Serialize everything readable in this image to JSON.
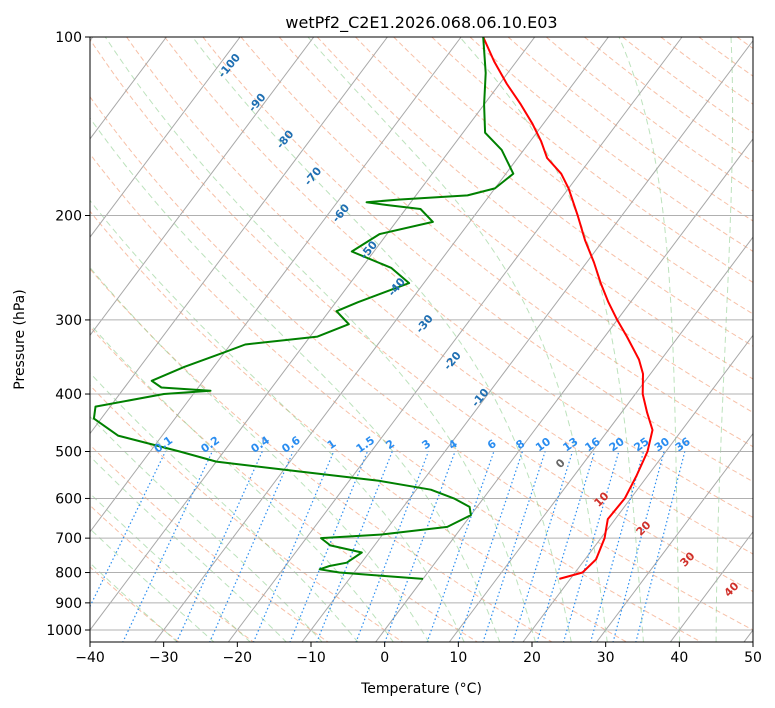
{
  "chart_data": {
    "type": "skew-t log-p",
    "title": "wetPf2_C2E1.2026.068.06.10.E03",
    "xlabel": "Temperature (°C)",
    "ylabel": "Pressure (hPa)",
    "xlim": [
      -40,
      50
    ],
    "ylim": [
      1050,
      100
    ],
    "y_scale": "log",
    "x_ticks": [
      -40,
      -30,
      -20,
      -10,
      0,
      10,
      20,
      30,
      40,
      50
    ],
    "y_ticks": [
      100,
      200,
      300,
      400,
      500,
      600,
      700,
      800,
      900,
      1000
    ],
    "grid": true,
    "colors": {
      "temperature": "#ff0000",
      "dewpoint": "#008000",
      "isotherm": "#a8a8a8",
      "dry_adiabat": "#f4a582",
      "moist_adiabat": "#8fce8f",
      "mixing_ratio": "#2a8df0",
      "adiabat_label": "#1f6fb2",
      "moist_label": "#d0302a"
    },
    "series": [
      {
        "points": [
          {
            "p": 820,
            "t": 18.5
          },
          {
            "p": 800,
            "t": 21
          },
          {
            "p": 760,
            "t": 21.5
          },
          {
            "p": 700,
            "t": 20.5
          },
          {
            "p": 650,
            "t": 19
          },
          {
            "p": 600,
            "t": 19.2
          },
          {
            "p": 550,
            "t": 18.5
          },
          {
            "p": 500,
            "t": 17.5
          },
          {
            "p": 460,
            "t": 16
          },
          {
            "p": 430,
            "t": 13.5
          },
          {
            "p": 400,
            "t": 11
          },
          {
            "p": 370,
            "t": 9
          },
          {
            "p": 350,
            "t": 7
          },
          {
            "p": 320,
            "t": 3
          },
          {
            "p": 300,
            "t": 0
          },
          {
            "p": 280,
            "t": -3
          },
          {
            "p": 260,
            "t": -6
          },
          {
            "p": 240,
            "t": -9
          },
          {
            "p": 220,
            "t": -12.5
          },
          {
            "p": 200,
            "t": -16
          },
          {
            "p": 180,
            "t": -20
          },
          {
            "p": 170,
            "t": -22.5
          },
          {
            "p": 160,
            "t": -26
          },
          {
            "p": 150,
            "t": -28.5
          },
          {
            "p": 140,
            "t": -31.5
          },
          {
            "p": 130,
            "t": -35
          },
          {
            "p": 120,
            "t": -39
          },
          {
            "p": 110,
            "t": -43
          },
          {
            "p": 100,
            "t": -47
          }
        ]
      },
      {
        "points": [
          {
            "p": 820,
            "t": 0
          },
          {
            "p": 810,
            "t": -6
          },
          {
            "p": 800,
            "t": -12
          },
          {
            "p": 790,
            "t": -15
          },
          {
            "p": 780,
            "t": -14
          },
          {
            "p": 770,
            "t": -12
          },
          {
            "p": 740,
            "t": -11
          },
          {
            "p": 720,
            "t": -16
          },
          {
            "p": 700,
            "t": -18
          },
          {
            "p": 690,
            "t": -10
          },
          {
            "p": 670,
            "t": -2
          },
          {
            "p": 640,
            "t": 0
          },
          {
            "p": 620,
            "t": -1
          },
          {
            "p": 600,
            "t": -4
          },
          {
            "p": 580,
            "t": -8
          },
          {
            "p": 560,
            "t": -16
          },
          {
            "p": 540,
            "t": -28
          },
          {
            "p": 520,
            "t": -40
          },
          {
            "p": 500,
            "t": -46
          },
          {
            "p": 470,
            "t": -56
          },
          {
            "p": 440,
            "t": -61
          },
          {
            "p": 420,
            "t": -62
          },
          {
            "p": 400,
            "t": -54
          },
          {
            "p": 395,
            "t": -48
          },
          {
            "p": 390,
            "t": -55
          },
          {
            "p": 380,
            "t": -57
          },
          {
            "p": 360,
            "t": -54
          },
          {
            "p": 340,
            "t": -50
          },
          {
            "p": 330,
            "t": -48
          },
          {
            "p": 320,
            "t": -39
          },
          {
            "p": 305,
            "t": -36
          },
          {
            "p": 290,
            "t": -39
          },
          {
            "p": 280,
            "t": -37
          },
          {
            "p": 260,
            "t": -32
          },
          {
            "p": 245,
            "t": -36
          },
          {
            "p": 230,
            "t": -43
          },
          {
            "p": 215,
            "t": -41
          },
          {
            "p": 205,
            "t": -35
          },
          {
            "p": 195,
            "t": -38
          },
          {
            "p": 192,
            "t": -43
          },
          {
            "p": 190,
            "t": -46
          },
          {
            "p": 188,
            "t": -42
          },
          {
            "p": 185,
            "t": -33
          },
          {
            "p": 180,
            "t": -30
          },
          {
            "p": 170,
            "t": -29
          },
          {
            "p": 155,
            "t": -33
          },
          {
            "p": 145,
            "t": -37
          },
          {
            "p": 130,
            "t": -40
          },
          {
            "p": 115,
            "t": -43
          },
          {
            "p": 100,
            "t": -47
          }
        ]
      }
    ],
    "dry_adiabat_labels": [
      -100,
      -90,
      -80,
      -70,
      -60,
      -50,
      -40,
      -30,
      -20,
      -10
    ],
    "mixing_ratio_labels": [
      "0.1",
      "0.2",
      "0.4",
      "0.6",
      "1",
      "1.5",
      "2",
      "3",
      "4",
      "6",
      "8",
      "10",
      "13",
      "16",
      "20",
      "25",
      "30",
      "36"
    ],
    "moist_adiabat_labels": [
      "0",
      "10",
      "20",
      "30",
      "40"
    ]
  }
}
